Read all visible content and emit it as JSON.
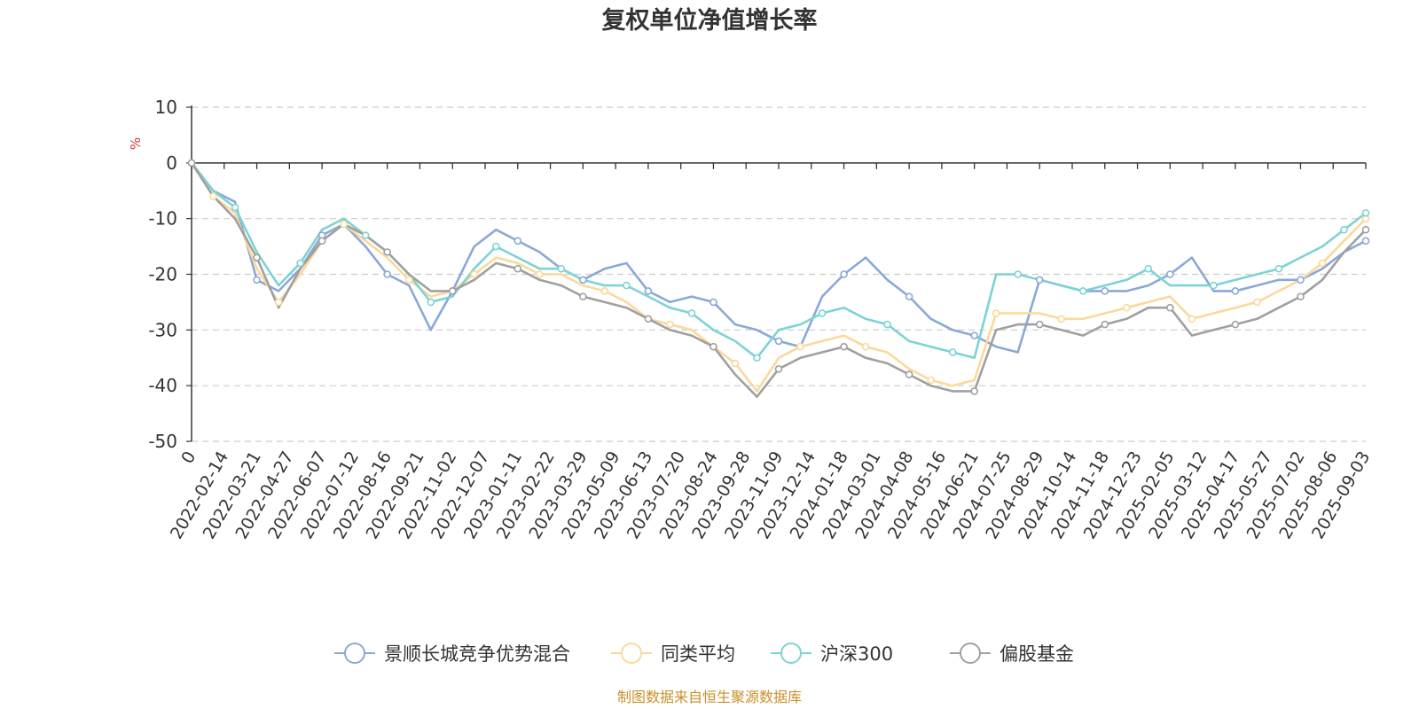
{
  "chart_data": {
    "type": "line",
    "title": "复权单位净值增长率",
    "ylabel": "%",
    "ylim": [
      -50,
      10
    ],
    "yticks": [
      10,
      0,
      -10,
      -20,
      -30,
      -40,
      -50
    ],
    "grid": true,
    "legend_position": "bottom-center",
    "x_tick_labels": [
      "0",
      "2022-02-14",
      "2022-03-21",
      "2022-04-27",
      "2022-06-07",
      "2022-07-12",
      "2022-08-16",
      "2022-09-21",
      "2022-11-02",
      "2022-12-07",
      "2023-01-11",
      "2023-02-22",
      "2023-03-29",
      "2023-05-09",
      "2023-06-13",
      "2023-07-20",
      "2023-08-24",
      "2023-09-28",
      "2023-11-09",
      "2023-12-14",
      "2024-01-18",
      "2024-03-01",
      "2024-04-08",
      "2024-05-16",
      "2024-06-21",
      "2024-07-25",
      "2024-08-29",
      "2024-10-14",
      "2024-11-18",
      "2024-12-23",
      "2025-02-05",
      "2025-03-12",
      "2025-04-17",
      "2025-05-27",
      "2025-07-02",
      "2025-08-06",
      "2025-09-03"
    ],
    "series": [
      {
        "name": "景顺长城竞争优势混合",
        "color": "#8aa8d8",
        "values": [
          0,
          -5,
          -7,
          -21,
          -23,
          -19,
          -13,
          -11,
          -15,
          -20,
          -22,
          -30,
          -23,
          -15,
          -12,
          -14,
          -16,
          -19,
          -21,
          -19,
          -18,
          -23,
          -25,
          -24,
          -25,
          -29,
          -30,
          -32,
          -33,
          -24,
          -20,
          -17,
          -21,
          -24,
          -28,
          -30,
          -31,
          -33,
          -34,
          -21,
          -22,
          -23,
          -23,
          -23,
          -22,
          -20,
          -17,
          -23,
          -23,
          -22,
          -21,
          -21,
          -19,
          -16,
          -14
        ]
      },
      {
        "name": "同类平均",
        "color": "#fcd89a",
        "values": [
          0,
          -6,
          -9,
          -19,
          -25,
          -20,
          -14,
          -11,
          -14,
          -17,
          -21,
          -24,
          -23,
          -20,
          -17,
          -18,
          -20,
          -20,
          -22,
          -23,
          -25,
          -28,
          -29,
          -30,
          -33,
          -36,
          -41,
          -35,
          -33,
          -32,
          -31,
          -33,
          -34,
          -37,
          -39,
          -40,
          -39,
          -27,
          -27,
          -27,
          -28,
          -28,
          -27,
          -26,
          -25,
          -24,
          -28,
          -27,
          -26,
          -25,
          -23,
          -21,
          -18,
          -14,
          -10
        ]
      },
      {
        "name": "沪深300",
        "color": "#7dd3d4",
        "values": [
          0,
          -5,
          -8,
          -16,
          -22,
          -18,
          -12,
          -10,
          -13,
          -16,
          -20,
          -25,
          -24,
          -19,
          -15,
          -17,
          -19,
          -19,
          -21,
          -22,
          -22,
          -24,
          -26,
          -27,
          -30,
          -32,
          -35,
          -30,
          -29,
          -27,
          -26,
          -28,
          -29,
          -32,
          -33,
          -34,
          -35,
          -20,
          -20,
          -21,
          -22,
          -23,
          -22,
          -21,
          -19,
          -22,
          -22,
          -22,
          -21,
          -20,
          -19,
          -17,
          -15,
          -12,
          -9
        ]
      },
      {
        "name": "偏股基金",
        "color": "#a0a0a0",
        "values": [
          0,
          -6,
          -10,
          -17,
          -26,
          -19,
          -14,
          -11,
          -13,
          -16,
          -20,
          -23,
          -23,
          -21,
          -18,
          -19,
          -21,
          -22,
          -24,
          -25,
          -26,
          -28,
          -30,
          -31,
          -33,
          -38,
          -42,
          -37,
          -35,
          -34,
          -33,
          -35,
          -36,
          -38,
          -40,
          -41,
          -41,
          -30,
          -29,
          -29,
          -30,
          -31,
          -29,
          -28,
          -26,
          -26,
          -31,
          -30,
          -29,
          -28,
          -26,
          -24,
          -21,
          -16,
          -12
        ]
      }
    ]
  },
  "footer": {
    "source": "制图数据来自恒生聚源数据库"
  }
}
